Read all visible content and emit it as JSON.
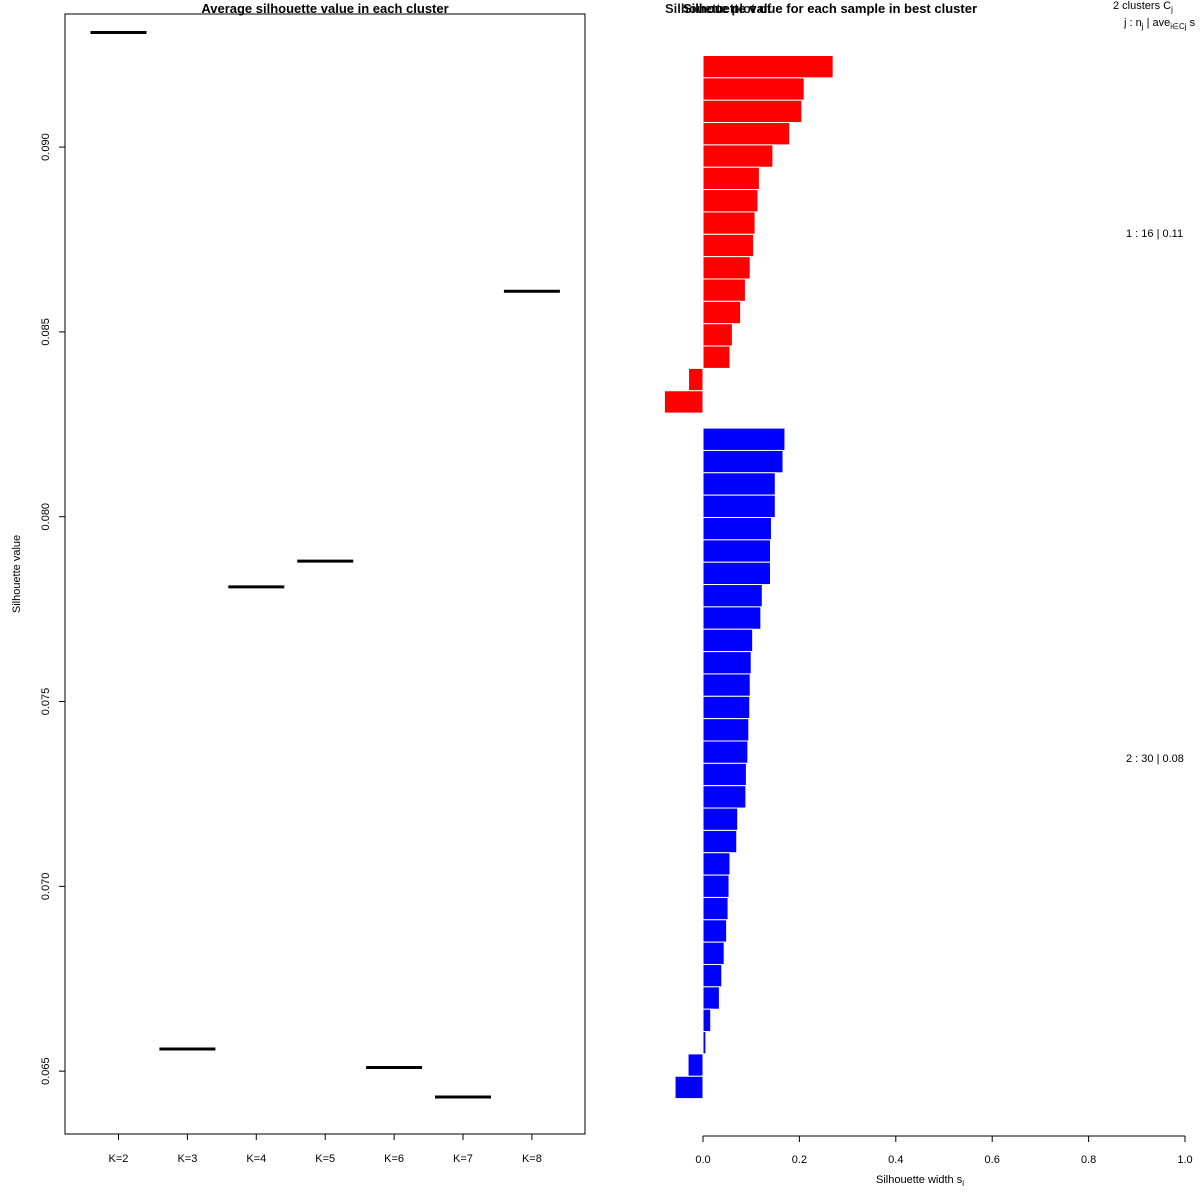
{
  "chart_data": [
    {
      "type": "line",
      "title": "Average silhouette value in each cluster",
      "ylabel": "Silhouette value",
      "xlabel": "",
      "categories": [
        "K=2",
        "K=3",
        "K=4",
        "K=5",
        "K=6",
        "K=7",
        "K=8"
      ],
      "values": [
        0.0931,
        0.0656,
        0.0781,
        0.0788,
        0.0651,
        0.0643,
        0.0861
      ],
      "ylim": [
        0.0633,
        0.0936
      ],
      "yticks": [
        0.065,
        0.07,
        0.075,
        0.08,
        0.085,
        0.09
      ],
      "ytick_labels": [
        "0.065",
        "0.070",
        "0.075",
        "0.080",
        "0.085",
        "0.090"
      ],
      "grid": false
    },
    {
      "type": "bar",
      "orientation": "horizontal",
      "title": "Silhouette value for each sample in best cluster",
      "title_overlap": "Silhouette plot of",
      "xlabel": "Silhouette width s",
      "xlabel_sub": "i",
      "xlim": [
        0,
        1
      ],
      "xticks": [
        0,
        0.2,
        0.4,
        0.6,
        0.8,
        1.0
      ],
      "xtick_labels": [
        "0.0",
        "0.2",
        "0.4",
        "0.6",
        "0.8",
        "1.0"
      ],
      "header": {
        "line1": "2  clusters  C",
        "line1_sub": "j",
        "line2_pre": "j :  n",
        "line2_sub": "j",
        "line2_mid": " | ave",
        "line2_sub2": "i∈Cj",
        "line2_post": "  s"
      },
      "series": [
        {
          "name": "cluster 1",
          "color": "#ff0000",
          "summary": "1 :  16  |  0.11",
          "values": [
            0.27,
            0.21,
            0.205,
            0.18,
            0.145,
            0.117,
            0.114,
            0.108,
            0.105,
            0.098,
            0.088,
            0.078,
            0.061,
            0.056,
            -0.03,
            -0.08
          ]
        },
        {
          "name": "cluster 2",
          "color": "#0000ff",
          "summary": "2 :  30  |  0.08",
          "values": [
            0.17,
            0.166,
            0.15,
            0.15,
            0.142,
            0.14,
            0.14,
            0.123,
            0.12,
            0.103,
            0.1,
            0.098,
            0.097,
            0.095,
            0.093,
            0.09,
            0.089,
            0.072,
            0.07,
            0.056,
            0.054,
            0.052,
            0.049,
            0.044,
            0.039,
            0.034,
            0.016,
            0.006,
            -0.031,
            -0.058
          ]
        }
      ]
    }
  ]
}
